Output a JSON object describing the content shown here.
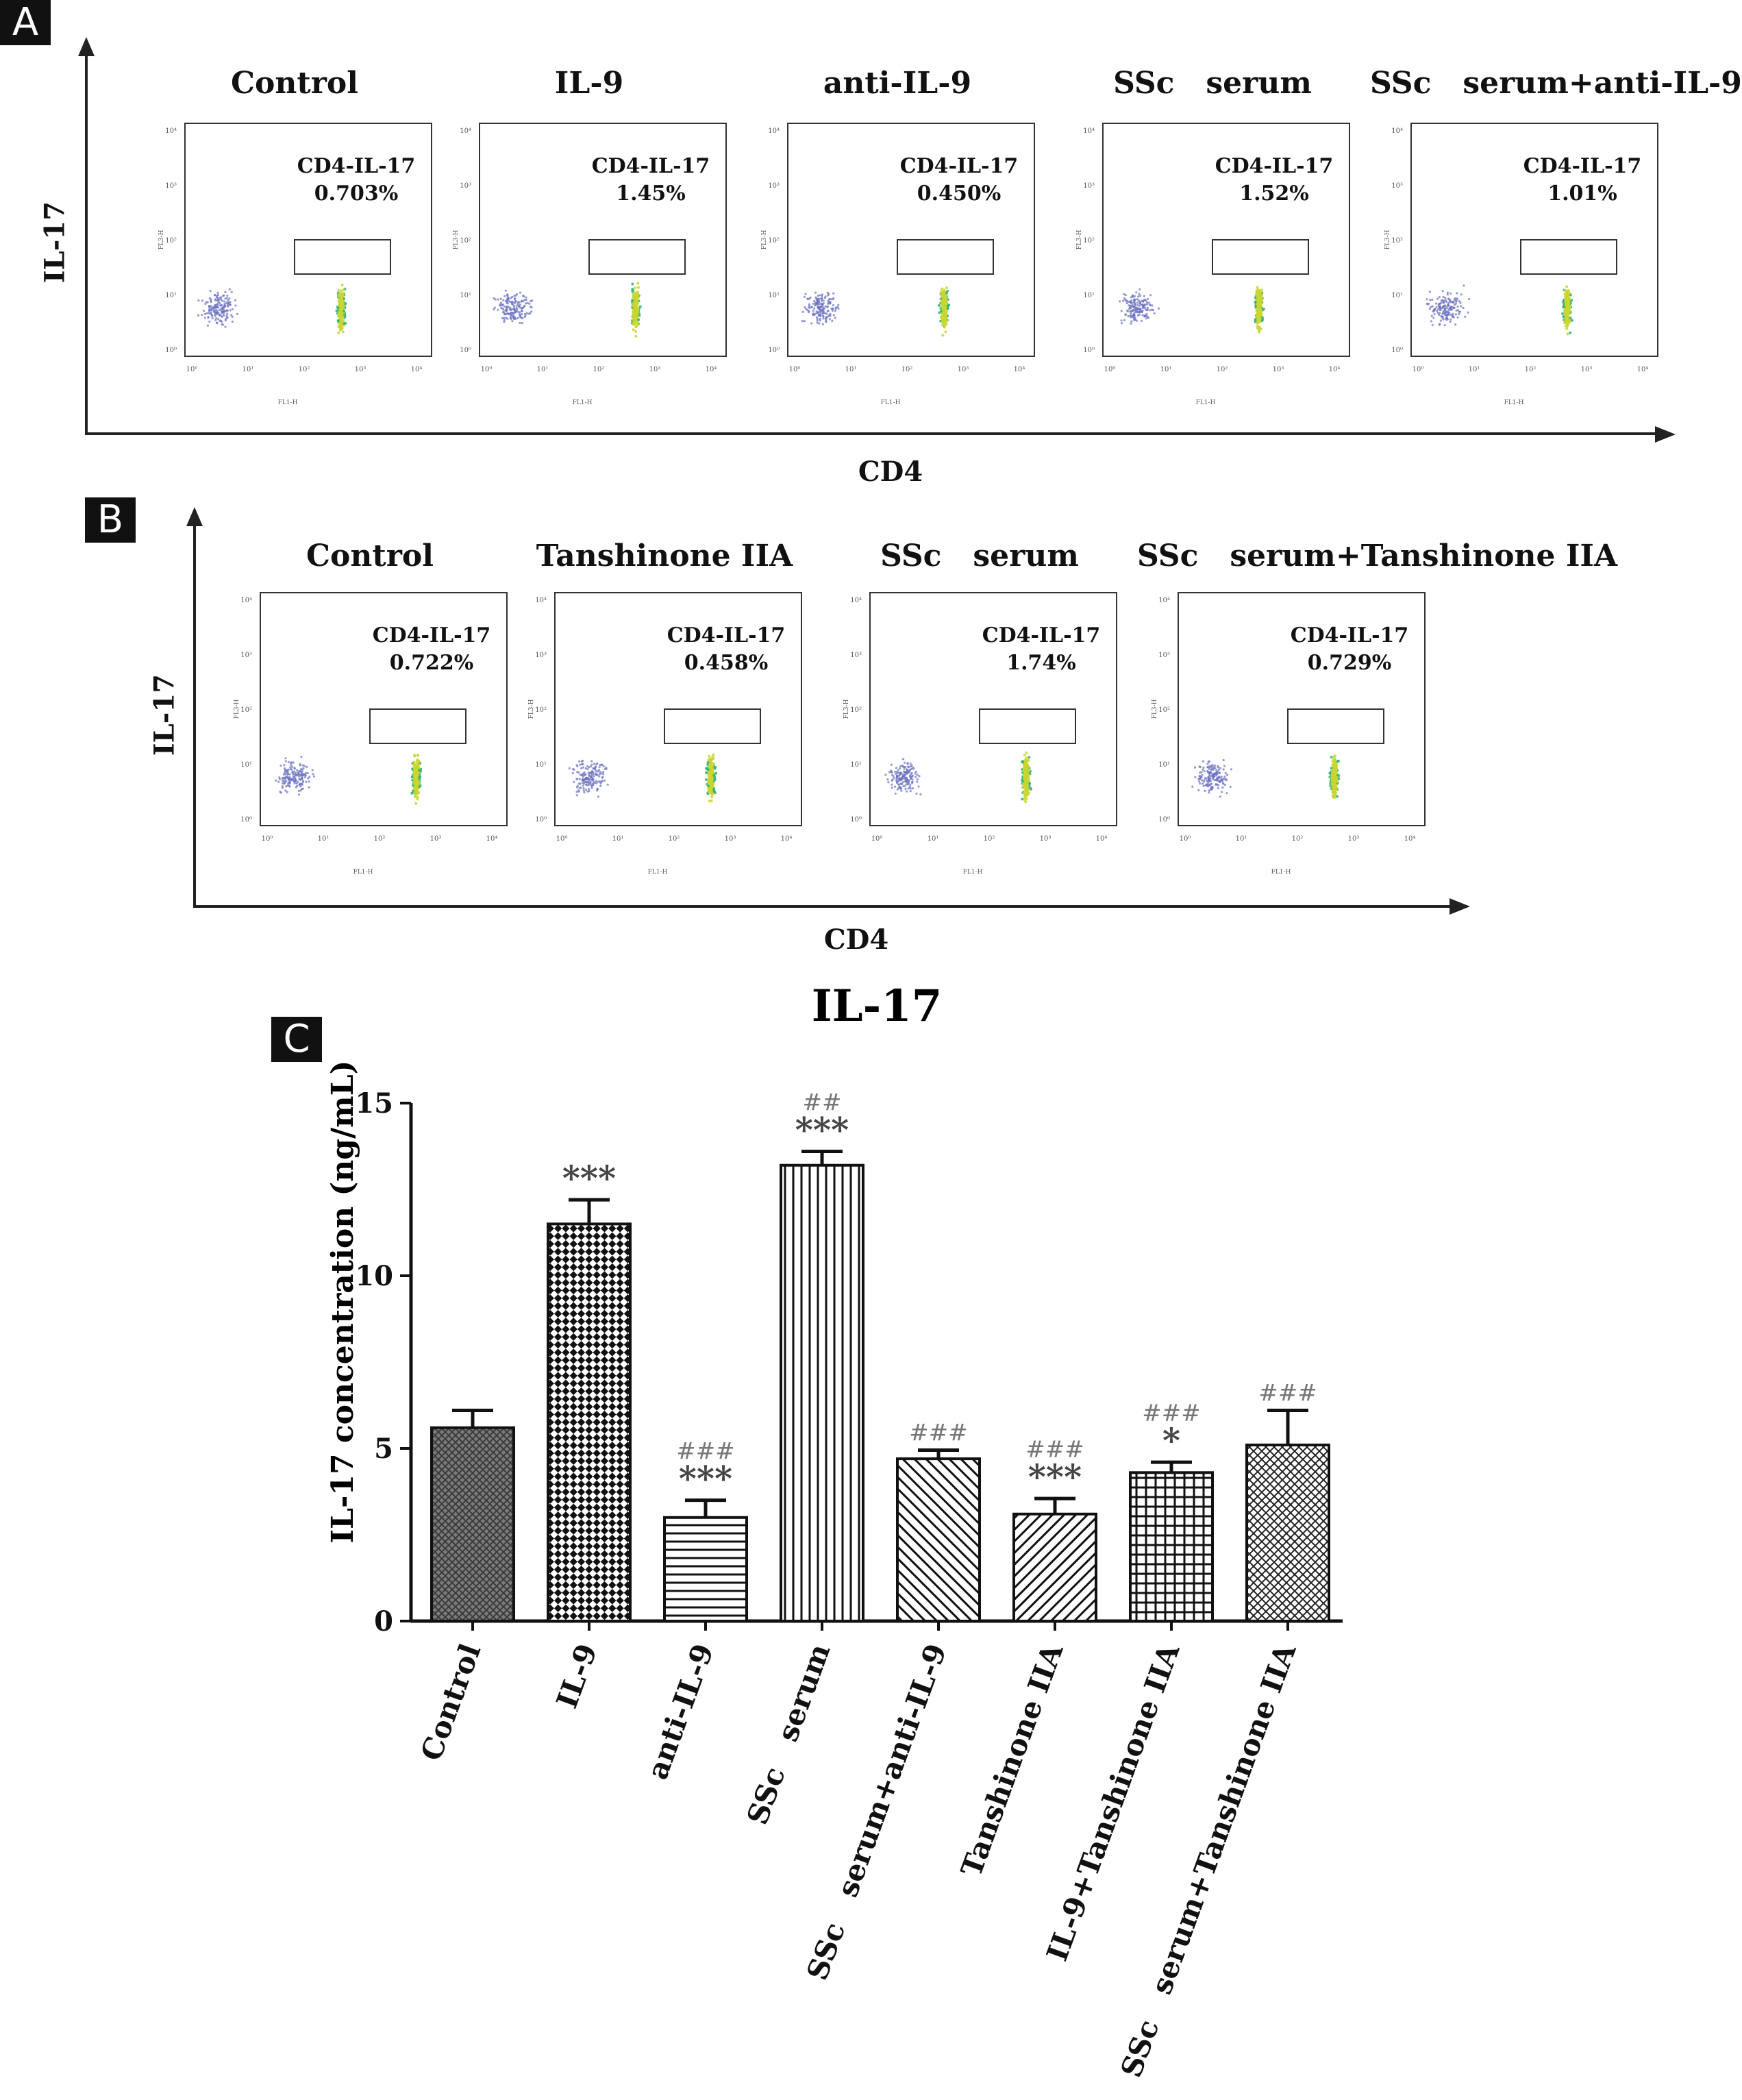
{
  "panel_a": {
    "letter": "A",
    "y_axis_label": "IL-17",
    "x_axis_label": "CD4",
    "plots": [
      {
        "condition": "Control",
        "gate_label": "CD4-IL-17",
        "percent": "0.703%"
      },
      {
        "condition": "IL-9",
        "gate_label": "CD4-IL-17",
        "percent": "1.45%"
      },
      {
        "condition": "anti-IL-9",
        "gate_label": "CD4-IL-17",
        "percent": "0.450%"
      },
      {
        "condition": "SSc   serum",
        "gate_label": "CD4-IL-17",
        "percent": "1.52%"
      },
      {
        "condition": "SSc   serum+anti-IL-9",
        "gate_label": "CD4-IL-17",
        "percent": "1.01%"
      }
    ]
  },
  "panel_b": {
    "letter": "B",
    "y_axis_label": "IL-17",
    "x_axis_label": "CD4",
    "plots": [
      {
        "condition": "Control",
        "gate_label": "CD4-IL-17",
        "percent": "0.722%"
      },
      {
        "condition": "Tanshinone IIA",
        "gate_label": "CD4-IL-17",
        "percent": "0.458%"
      },
      {
        "condition": "SSc   serum",
        "gate_label": "CD4-IL-17",
        "percent": "1.74%"
      },
      {
        "condition": "SSc   serum+Tanshinone IIA",
        "gate_label": "CD4-IL-17",
        "percent": "0.729%"
      }
    ]
  },
  "flow_axis": {
    "fl3h": "FL3-H",
    "fl1h": "FL1-H",
    "tick_100": "10⁰",
    "tick_101": "10¹",
    "tick_102": "10²",
    "tick_103": "10³",
    "tick_104": "10⁴"
  },
  "panel_c": {
    "letter": "C"
  },
  "chart_data": {
    "type": "bar",
    "title": "IL-17",
    "xlabel": "",
    "ylabel": "IL-17 concentration (ng/mL)",
    "ylim": [
      0,
      15
    ],
    "yticks": [
      "0",
      "5",
      "10",
      "15"
    ],
    "categories": [
      "Control",
      "IL-9",
      "anti-IL-9",
      "SSc   serum",
      "SSc   serum+anti-IL-9",
      "Tanshinone IIA",
      "IL-9+Tanshinone IIA",
      "SSc   serum+Tanshinone IIA"
    ],
    "values": [
      5.6,
      11.5,
      3.0,
      13.2,
      4.7,
      3.1,
      4.3,
      5.1
    ],
    "errors": [
      0.5,
      0.7,
      0.5,
      0.4,
      0.25,
      0.45,
      0.3,
      1.0
    ],
    "star_labels": [
      "",
      "***",
      "***",
      "***",
      "",
      "***",
      "*",
      ""
    ],
    "hash_labels": [
      "",
      "",
      "###",
      "##",
      "###",
      "###",
      "###",
      "###"
    ],
    "patterns": [
      "crosshatch-dense",
      "checker",
      "hlines",
      "vlines",
      "diag-right",
      "diag-left",
      "grid",
      "diag-cross"
    ]
  }
}
